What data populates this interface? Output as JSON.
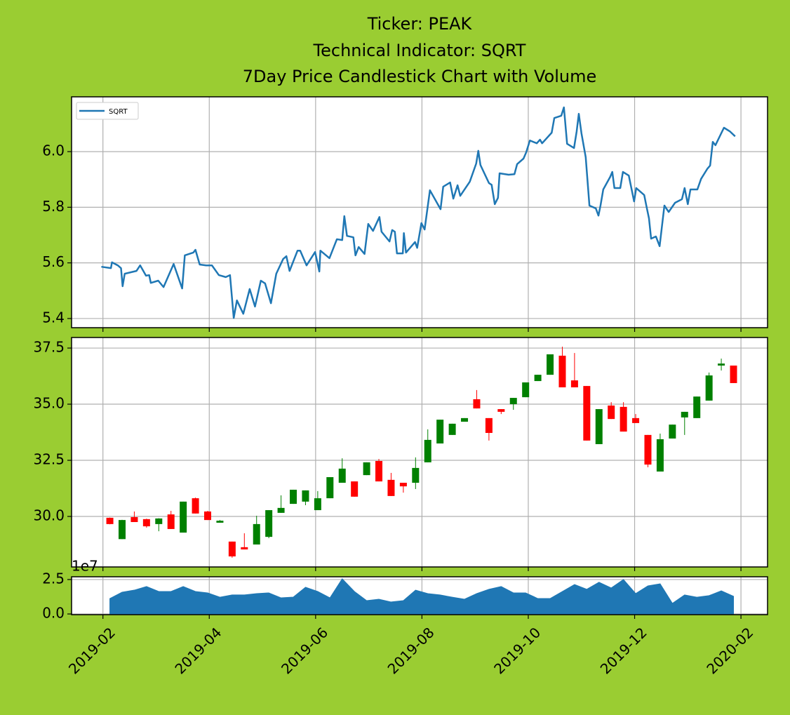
{
  "chart_data": [
    {
      "type": "line",
      "title": [
        "Ticker: PEAK",
        "Technical Indicator: SQRT",
        "7Day Price Candlestick Chart with Volume"
      ],
      "x": [
        0.97,
        1.15,
        1.17,
        1.28,
        1.34,
        1.37,
        1.41,
        1.63,
        1.7,
        1.81,
        1.87,
        1.9,
        2.04,
        2.14,
        2.33,
        2.49,
        2.54,
        2.7,
        2.74,
        2.82,
        2.94,
        3.05,
        3.18,
        3.31,
        3.39,
        3.46,
        3.52,
        3.64,
        3.76,
        3.86,
        3.97,
        4.05,
        4.16,
        4.26,
        4.39,
        4.45,
        4.51,
        4.66,
        4.71,
        4.83,
        4.99,
        5.07,
        5.09,
        5.26,
        5.4,
        5.5,
        5.54,
        5.59,
        5.71,
        5.75,
        5.81,
        5.92,
        5.99,
        6.08,
        6.2,
        6.24,
        6.39,
        6.44,
        6.49,
        6.53,
        6.64,
        6.66,
        6.7,
        6.87,
        6.91,
        6.99,
        7.05,
        7.15,
        7.35,
        7.4,
        7.53,
        7.59,
        7.67,
        7.72,
        7.9,
        8.02,
        8.06,
        8.1,
        8.26,
        8.31,
        8.37,
        8.43,
        8.46,
        8.63,
        8.74,
        8.79,
        8.91,
        8.96,
        9.03,
        9.16,
        9.22,
        9.26,
        9.44,
        9.49,
        9.62,
        9.67,
        9.73,
        9.86,
        9.91,
        9.95,
        10.0,
        10.08,
        10.15,
        10.27,
        10.32,
        10.36,
        10.41,
        10.54,
        10.58,
        10.62,
        10.73,
        10.78,
        10.89,
        10.99,
        11.03,
        11.18,
        11.22,
        11.27,
        11.31,
        11.4,
        11.47,
        11.51,
        11.56,
        11.64,
        11.76,
        11.89,
        11.94,
        12.0,
        12.05,
        12.18,
        12.25,
        12.37,
        12.42,
        12.47,
        12.52,
        12.68,
        12.79,
        12.89
      ],
      "series": [
        {
          "name": "SQRT",
          "color": "#1f77b4",
          "values": [
            5.586,
            5.581,
            5.602,
            5.591,
            5.581,
            5.516,
            5.561,
            5.571,
            5.591,
            5.554,
            5.556,
            5.528,
            5.536,
            5.513,
            5.596,
            5.508,
            5.627,
            5.637,
            5.647,
            5.594,
            5.591,
            5.591,
            5.556,
            5.549,
            5.556,
            5.402,
            5.465,
            5.417,
            5.506,
            5.443,
            5.536,
            5.526,
            5.455,
            5.561,
            5.614,
            5.624,
            5.571,
            5.644,
            5.644,
            5.591,
            5.639,
            5.569,
            5.644,
            5.617,
            5.685,
            5.682,
            5.768,
            5.697,
            5.692,
            5.627,
            5.657,
            5.632,
            5.74,
            5.715,
            5.765,
            5.712,
            5.677,
            5.718,
            5.712,
            5.634,
            5.634,
            5.707,
            5.637,
            5.675,
            5.654,
            5.743,
            5.72,
            5.861,
            5.793,
            5.874,
            5.889,
            5.831,
            5.879,
            5.841,
            5.892,
            5.957,
            6.003,
            5.952,
            5.887,
            5.881,
            5.811,
            5.834,
            5.922,
            5.917,
            5.919,
            5.955,
            5.975,
            5.997,
            6.04,
            6.03,
            6.043,
            6.03,
            6.068,
            6.121,
            6.129,
            6.159,
            6.028,
            6.013,
            6.073,
            6.136,
            6.066,
            5.98,
            5.806,
            5.796,
            5.77,
            5.808,
            5.864,
            5.909,
            5.927,
            5.869,
            5.869,
            5.927,
            5.914,
            5.821,
            5.869,
            5.844,
            5.806,
            5.76,
            5.687,
            5.695,
            5.66,
            5.725,
            5.806,
            5.783,
            5.816,
            5.829,
            5.869,
            5.811,
            5.864,
            5.864,
            5.902,
            5.939,
            5.95,
            6.035,
            6.023,
            6.086,
            6.073,
            6.055
          ]
        }
      ],
      "ylim": [
        5.367,
        6.197
      ],
      "yticks": [
        5.4,
        5.6,
        5.8,
        {
          "value": 6,
          "label": "6.0"
        }
      ],
      "grid": true,
      "legend": "upper left"
    },
    {
      "type": "candlestick",
      "x": [
        1.13,
        1.36,
        1.59,
        1.82,
        2.05,
        2.28,
        2.51,
        2.74,
        2.97,
        3.2,
        3.43,
        3.66,
        3.89,
        4.12,
        4.35,
        4.58,
        4.81,
        5.04,
        5.27,
        5.5,
        5.73,
        5.96,
        6.19,
        6.42,
        6.65,
        6.88,
        7.11,
        7.34,
        7.57,
        7.8,
        8.03,
        8.26,
        8.49,
        8.72,
        8.95,
        9.18,
        9.41,
        9.64,
        9.87,
        10.1,
        10.33,
        10.56,
        10.79,
        11.02,
        11.25,
        11.48,
        11.71,
        11.94,
        12.17,
        12.4,
        12.63,
        12.86
      ],
      "open": [
        29.94,
        28.99,
        29.97,
        29.88,
        29.66,
        30.09,
        29.28,
        30.81,
        30.22,
        29.72,
        28.88,
        28.63,
        28.75,
        29.09,
        30.16,
        30.56,
        30.66,
        30.28,
        30.81,
        31.5,
        31.56,
        31.84,
        32.47,
        31.63,
        31.5,
        31.5,
        32.41,
        33.25,
        33.63,
        34.22,
        35.22,
        34.38,
        34.78,
        35.0,
        35.31,
        36.03,
        36.31,
        37.16,
        36.06,
        35.81,
        33.22,
        34.94,
        34.88,
        34.38,
        33.63,
        32.0,
        33.47,
        34.41,
        34.38,
        35.16,
        36.72,
        36.72
      ],
      "high": [
        29.95,
        29.85,
        30.22,
        29.9,
        29.92,
        30.25,
        30.66,
        30.84,
        30.25,
        29.84,
        28.88,
        29.25,
        30.03,
        30.28,
        30.94,
        31.19,
        31.16,
        31.13,
        31.75,
        32.59,
        31.56,
        32.41,
        32.56,
        31.94,
        31.5,
        32.63,
        33.88,
        34.31,
        34.13,
        34.38,
        35.63,
        34.38,
        34.78,
        35.28,
        35.97,
        36.31,
        37.22,
        37.56,
        37.28,
        35.81,
        34.78,
        35.09,
        35.09,
        34.56,
        33.63,
        33.69,
        34.09,
        34.66,
        35.34,
        36.41,
        37.03,
        36.72
      ],
      "low": [
        29.65,
        28.99,
        29.75,
        29.5,
        29.34,
        29.44,
        29.28,
        30.13,
        29.84,
        29.72,
        28.16,
        28.53,
        28.75,
        29.03,
        30.16,
        30.56,
        30.5,
        30.28,
        30.81,
        31.5,
        30.88,
        31.84,
        31.56,
        30.91,
        31.06,
        31.22,
        32.41,
        33.25,
        33.63,
        34.22,
        34.81,
        33.38,
        34.56,
        34.75,
        35.31,
        36.03,
        36.31,
        35.75,
        35.75,
        33.38,
        33.22,
        34.34,
        33.78,
        34.16,
        32.19,
        32.0,
        33.47,
        33.63,
        34.38,
        35.16,
        36.5,
        35.94
      ],
      "close": [
        29.66,
        29.84,
        29.75,
        29.56,
        29.91,
        29.44,
        30.66,
        30.13,
        29.84,
        29.81,
        28.22,
        28.53,
        29.66,
        30.28,
        30.38,
        31.19,
        31.16,
        30.81,
        31.75,
        32.13,
        30.88,
        32.41,
        31.56,
        30.91,
        31.34,
        32.16,
        33.41,
        34.31,
        34.13,
        34.38,
        34.81,
        33.72,
        34.66,
        35.28,
        35.97,
        36.31,
        37.22,
        35.75,
        35.75,
        33.38,
        34.78,
        34.34,
        33.78,
        34.16,
        32.31,
        33.44,
        34.09,
        34.66,
        35.34,
        36.28,
        36.81,
        35.94
      ],
      "up_color": "green",
      "down_color": "red",
      "ylim": [
        27.75,
        37.97
      ],
      "yticks": [
        {
          "value": 30,
          "label": "30.0"
        },
        32.5,
        {
          "value": 35,
          "label": "35.0"
        },
        37.5
      ],
      "grid": true
    },
    {
      "type": "area",
      "x": [
        1.13,
        1.36,
        1.59,
        1.82,
        2.05,
        2.28,
        2.51,
        2.74,
        2.97,
        3.2,
        3.43,
        3.66,
        3.89,
        4.12,
        4.35,
        4.58,
        4.81,
        5.04,
        5.27,
        5.5,
        5.73,
        5.96,
        6.19,
        6.42,
        6.65,
        6.88,
        7.11,
        7.34,
        7.57,
        7.8,
        8.03,
        8.26,
        8.49,
        8.72,
        8.95,
        9.18,
        9.41,
        9.64,
        9.87,
        10.1,
        10.33,
        10.56,
        10.79,
        11.02,
        11.25,
        11.48,
        11.71,
        11.94,
        12.17,
        12.4,
        12.63,
        12.86
      ],
      "values": [
        1.12,
        1.58,
        1.73,
        1.99,
        1.63,
        1.63,
        1.99,
        1.63,
        1.53,
        1.22,
        1.38,
        1.38,
        1.48,
        1.53,
        1.17,
        1.22,
        1.94,
        1.63,
        1.17,
        2.55,
        1.63,
        0.97,
        1.07,
        0.87,
        0.97,
        1.73,
        1.48,
        1.38,
        1.22,
        1.07,
        1.48,
        1.79,
        1.99,
        1.53,
        1.53,
        1.12,
        1.12,
        1.63,
        2.14,
        1.79,
        2.3,
        1.89,
        2.5,
        1.48,
        2.04,
        2.19,
        0.77,
        1.38,
        1.22,
        1.33,
        1.68,
        1.28
      ],
      "color": "#1f77b4",
      "offset_label": "1e7",
      "ylim": [
        -0.05,
        2.7
      ],
      "yticks": [
        {
          "value": 0,
          "label": "0.0"
        },
        2.5
      ],
      "xlim": [
        0.41,
        13.5
      ],
      "xticks": [
        {
          "value": 1,
          "label": "2019-02"
        },
        {
          "value": 3,
          "label": "2019-04"
        },
        {
          "value": 5,
          "label": "2019-06"
        },
        {
          "value": 7,
          "label": "2019-08"
        },
        {
          "value": 9,
          "label": "2019-10"
        },
        {
          "value": 11,
          "label": "2019-12"
        },
        {
          "value": 13,
          "label": "2020-02"
        }
      ],
      "grid": true
    }
  ]
}
